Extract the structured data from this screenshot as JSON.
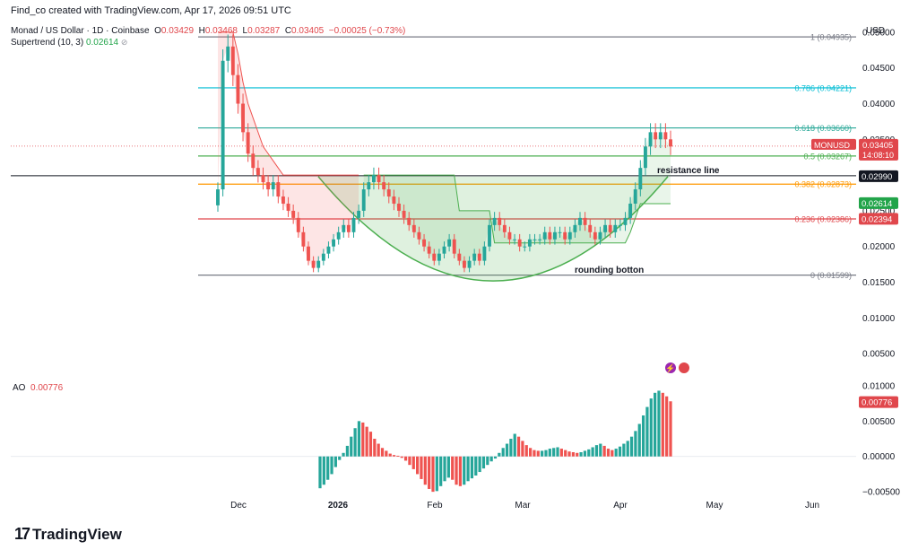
{
  "header": {
    "credit": "Find_co created with TradingView.com, Apr 17, 2026 09:51 UTC"
  },
  "legend": {
    "symbol": "Monad / US Dollar · 1D · Coinbase",
    "o_label": "O",
    "o": "0.03429",
    "h_label": "H",
    "h": "0.03468",
    "l_label": "L",
    "l": "0.03287",
    "c_label": "C",
    "c": "0.03405",
    "change": "−0.00025 (−0.73%)",
    "indicator_name": "Supertrend (10, 3)",
    "indicator_value": "0.02614",
    "ao_name": "AO",
    "ao_value": "0.00776"
  },
  "currency": "USD",
  "logo": {
    "mark": "17",
    "text": "TradingView"
  },
  "colors": {
    "up": "#26a69a",
    "down": "#ef5350",
    "supertrend_up": "#4caf50",
    "supertrend_down": "#ef5350",
    "fib_1": "#787b86",
    "fib_786": "#00bcd4",
    "fib_618": "#2aa898",
    "fib_05": "#4caf50",
    "fib_382": "#ff9800",
    "fib_236": "#e0474c",
    "fib_0": "#787b86",
    "price_tag": "#e0474c",
    "resistance_tag": "#131722",
    "supertrend_tag": "#22a44a"
  },
  "chart_data": [
    {
      "type": "candlestick",
      "price_axis": {
        "ticks": [
          "0.05000",
          "0.04500",
          "0.04000",
          "0.03500",
          "0.03000",
          "0.02500",
          "0.02000",
          "0.01500",
          "0.01000",
          "0.00500"
        ],
        "ylim": [
          0.002,
          0.052
        ]
      },
      "time_axis": {
        "ticks": [
          "Dec",
          "2026",
          "Feb",
          "Mar",
          "Apr",
          "May",
          "Jun"
        ]
      },
      "fib_levels": [
        {
          "ratio": "1",
          "value": 0.04935,
          "label": "1 (0.04935)"
        },
        {
          "ratio": "0.786",
          "value": 0.04221,
          "label": "0.786 (0.04221)"
        },
        {
          "ratio": "0.618",
          "value": 0.0366,
          "label": "0.618 (0.03660)"
        },
        {
          "ratio": "0.5",
          "value": 0.03267,
          "label": "0.5 (0.03267)"
        },
        {
          "ratio": "0.382",
          "value": 0.02873,
          "label": "0.382 (0.02873)"
        },
        {
          "ratio": "0.236",
          "value": 0.02386,
          "label": "0.236 (0.02386)"
        },
        {
          "ratio": "0",
          "value": 0.01599,
          "label": "0 (0.01599)"
        }
      ],
      "annotations": [
        {
          "text": "resistance line",
          "value": 0.0299
        },
        {
          "text": "rounding botton",
          "value": 0.0166
        }
      ],
      "price_tags": [
        {
          "text": "MONUSD",
          "sub": "0.03405",
          "timer": "14:08:10",
          "value": 0.03405
        },
        {
          "text": "0.02990",
          "value": 0.0299
        },
        {
          "text": "0.02614",
          "value": 0.02614
        },
        {
          "text": "0.02394",
          "value": 0.02394
        }
      ],
      "candles_close": [
        0.028,
        0.046,
        0.048,
        0.044,
        0.04,
        0.036,
        0.033,
        0.031,
        0.03,
        0.029,
        0.028,
        0.029,
        0.027,
        0.026,
        0.025,
        0.024,
        0.022,
        0.02,
        0.018,
        0.017,
        0.018,
        0.019,
        0.02,
        0.021,
        0.022,
        0.023,
        0.022,
        0.024,
        0.025,
        0.028,
        0.029,
        0.03,
        0.029,
        0.028,
        0.027,
        0.026,
        0.025,
        0.024,
        0.023,
        0.022,
        0.021,
        0.02,
        0.019,
        0.018,
        0.019,
        0.02,
        0.021,
        0.019,
        0.018,
        0.017,
        0.018,
        0.019,
        0.018,
        0.02,
        0.023,
        0.024,
        0.023,
        0.022,
        0.021,
        0.021,
        0.02,
        0.02,
        0.021,
        0.021,
        0.021,
        0.022,
        0.021,
        0.022,
        0.022,
        0.021,
        0.022,
        0.023,
        0.024,
        0.023,
        0.022,
        0.021,
        0.022,
        0.023,
        0.022,
        0.023,
        0.023,
        0.024,
        0.026,
        0.028,
        0.031,
        0.034,
        0.036,
        0.035,
        0.036,
        0.035,
        0.034
      ],
      "supertrend": [
        0.05,
        0.05,
        0.05,
        0.05,
        0.047,
        0.043,
        0.04,
        0.038,
        0.036,
        0.034,
        0.033,
        0.032,
        0.031,
        0.03,
        0.03,
        0.03,
        0.03,
        0.03,
        0.03,
        0.03,
        0.03,
        0.03,
        0.03,
        0.03,
        0.03,
        0.03,
        0.03,
        0.03,
        0.03,
        0.03,
        0.03,
        0.03,
        0.03,
        0.03,
        0.03,
        0.03,
        0.03,
        0.03,
        0.03,
        0.03,
        0.03,
        0.03,
        0.03,
        0.03,
        0.03,
        0.03,
        0.03,
        0.03,
        0.025,
        0.025,
        0.025,
        0.025,
        0.025,
        0.025,
        0.025,
        0.0205,
        0.0205,
        0.0205,
        0.0205,
        0.0205,
        0.0205,
        0.0205,
        0.0205,
        0.0205,
        0.0205,
        0.0205,
        0.0205,
        0.0205,
        0.0205,
        0.0205,
        0.0205,
        0.0205,
        0.0205,
        0.0205,
        0.0205,
        0.0205,
        0.0205,
        0.0205,
        0.0205,
        0.0205,
        0.0205,
        0.0205,
        0.022,
        0.024,
        0.026,
        0.026,
        0.026,
        0.026,
        0.026,
        0.026,
        0.026
      ],
      "supertrend_up_from_index": 29
    },
    {
      "type": "bar",
      "title": "AO",
      "value_axis": {
        "ticks": [
          "0.01000",
          "0.00500",
          "0.00000",
          "−0.00500"
        ],
        "ylim": [
          -0.006,
          0.0105
        ]
      },
      "values": [
        -0.0045,
        -0.004,
        -0.0033,
        -0.0025,
        -0.0015,
        -0.0005,
        0.0005,
        0.0015,
        0.0028,
        0.004,
        0.005,
        0.0048,
        0.0042,
        0.0035,
        0.0025,
        0.0018,
        0.0012,
        0.0008,
        0.0004,
        0.0002,
        0.0001,
        -0.0002,
        -0.0006,
        -0.0012,
        -0.0018,
        -0.0025,
        -0.0032,
        -0.004,
        -0.0046,
        -0.005,
        -0.0049,
        -0.0042,
        -0.0035,
        -0.003,
        -0.0033,
        -0.004,
        -0.0042,
        -0.004,
        -0.0035,
        -0.0031,
        -0.0027,
        -0.0022,
        -0.0017,
        -0.0012,
        -0.0007,
        -0.0003,
        0.0005,
        0.0012,
        0.0018,
        0.0025,
        0.0032,
        0.0028,
        0.0022,
        0.0016,
        0.0012,
        0.0009,
        0.0008,
        0.0008,
        0.0009,
        0.0011,
        0.0012,
        0.0013,
        0.0011,
        0.0009,
        0.0007,
        0.0006,
        0.0005,
        0.0006,
        0.0008,
        0.001,
        0.0013,
        0.0016,
        0.0018,
        0.0015,
        0.0011,
        0.0009,
        0.0011,
        0.0014,
        0.0018,
        0.0022,
        0.0028,
        0.0036,
        0.0046,
        0.0058,
        0.007,
        0.0082,
        0.009,
        0.0093,
        0.009,
        0.0085,
        0.0078
      ]
    }
  ]
}
